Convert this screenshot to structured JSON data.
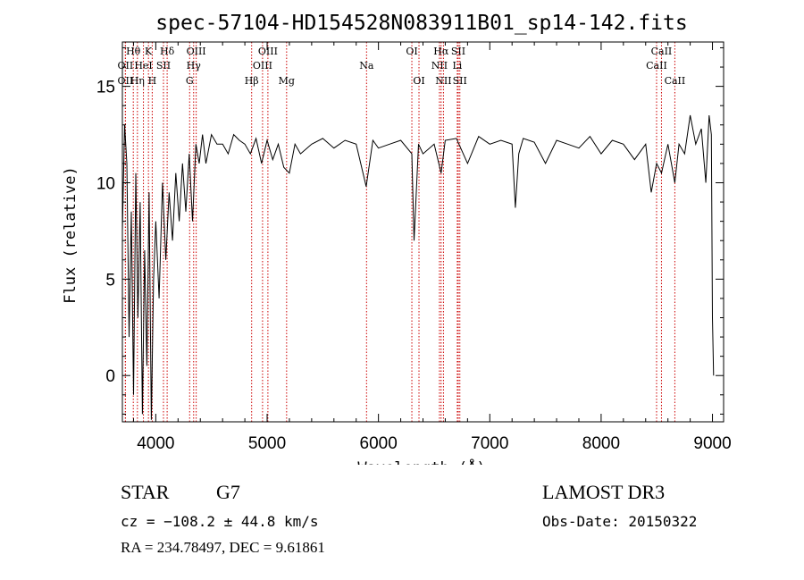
{
  "chart_data": {
    "type": "line",
    "title": "spec-57104-HD154528N083911B01_sp14-142.fits",
    "xlabel": "Wavelength (Å)",
    "ylabel": "Flux (relative)",
    "xlim": [
      3700,
      9100
    ],
    "ylim": [
      -2.4,
      17.3
    ],
    "xticks": [
      4000,
      5000,
      6000,
      7000,
      8000,
      9000
    ],
    "yticks": [
      0,
      5,
      10,
      15
    ],
    "grid": false,
    "series": [
      {
        "x": [
          3700,
          3720,
          3740,
          3760,
          3780,
          3800,
          3820,
          3840,
          3860,
          3880,
          3900,
          3920,
          3940,
          3960,
          3980,
          4000,
          4030,
          4060,
          4090,
          4120,
          4150,
          4180,
          4210,
          4240,
          4270,
          4300,
          4330,
          4360,
          4390,
          4420,
          4450,
          4500,
          4550,
          4600,
          4650,
          4700,
          4750,
          4800,
          4850,
          4900,
          4950,
          5000,
          5050,
          5100,
          5150,
          5200,
          5250,
          5300,
          5400,
          5500,
          5600,
          5700,
          5800,
          5890,
          5950,
          6000,
          6100,
          6200,
          6300,
          6320,
          6360,
          6400,
          6500,
          6563,
          6600,
          6700,
          6800,
          6900,
          7000,
          7100,
          7200,
          7230,
          7260,
          7300,
          7400,
          7500,
          7600,
          7700,
          7800,
          7900,
          8000,
          8100,
          8200,
          8300,
          8400,
          8450,
          8498,
          8542,
          8600,
          8662,
          8700,
          8750,
          8800,
          8850,
          8900,
          8940,
          8970,
          8990,
          9000,
          9010
        ],
        "y": [
          7.5,
          13.0,
          11.0,
          2.0,
          8.5,
          -1.0,
          10.5,
          3.0,
          9.0,
          -2.0,
          6.5,
          0.5,
          9.5,
          -2.3,
          5.0,
          8.0,
          4.0,
          10.0,
          6.0,
          9.5,
          7.0,
          10.5,
          8.0,
          11.0,
          8.5,
          11.5,
          8.0,
          12.0,
          11.0,
          12.5,
          11.0,
          12.5,
          12.0,
          12.0,
          11.5,
          12.5,
          12.2,
          12.0,
          11.5,
          12.3,
          11.0,
          12.2,
          11.2,
          12.0,
          10.8,
          10.5,
          12.0,
          11.5,
          12.0,
          12.3,
          11.8,
          12.2,
          12.0,
          9.8,
          12.2,
          11.8,
          12.0,
          12.2,
          11.5,
          7.0,
          12.0,
          11.5,
          12.0,
          10.5,
          12.2,
          12.3,
          11.0,
          12.4,
          12.0,
          12.2,
          12.0,
          8.7,
          11.5,
          12.3,
          12.1,
          11.0,
          12.2,
          12.0,
          11.8,
          12.4,
          11.5,
          12.2,
          12.0,
          11.2,
          12.0,
          9.5,
          11.0,
          10.5,
          12.0,
          10.0,
          12.0,
          11.5,
          13.5,
          12.0,
          12.8,
          10.0,
          13.5,
          12.5,
          3.0,
          0.0
        ]
      }
    ],
    "line_markers": [
      {
        "label": "Hθ",
        "x": 3798,
        "row": 1
      },
      {
        "label": "OII",
        "x": 3727,
        "row": 2
      },
      {
        "label": "OII",
        "x": 3727,
        "row": 3
      },
      {
        "label": "K",
        "x": 3934,
        "row": 1
      },
      {
        "label": "HeI",
        "x": 3889,
        "row": 2
      },
      {
        "label": "Hη",
        "x": 3835,
        "row": 3
      },
      {
        "label": "Hδ",
        "x": 4102,
        "row": 1
      },
      {
        "label": "SII",
        "x": 4069,
        "row": 2
      },
      {
        "label": "H",
        "x": 3968,
        "row": 3
      },
      {
        "label": "OIII",
        "x": 4363,
        "row": 1
      },
      {
        "label": "Hγ",
        "x": 4340,
        "row": 2
      },
      {
        "label": "G",
        "x": 4304,
        "row": 3
      },
      {
        "label": "OIII",
        "x": 5007,
        "row": 1
      },
      {
        "label": "OIII",
        "x": 4959,
        "row": 2
      },
      {
        "label": "Hβ",
        "x": 4861,
        "row": 3
      },
      {
        "label": "Mg",
        "x": 5175,
        "row": 3
      },
      {
        "label": "Na",
        "x": 5893,
        "row": 2
      },
      {
        "label": "OI",
        "x": 6300,
        "row": 1
      },
      {
        "label": "OI",
        "x": 6364,
        "row": 3
      },
      {
        "label": "Hα",
        "x": 6563,
        "row": 1
      },
      {
        "label": "NII",
        "x": 6548,
        "row": 2
      },
      {
        "label": "NII",
        "x": 6584,
        "row": 3
      },
      {
        "label": "SII",
        "x": 6717,
        "row": 1
      },
      {
        "label": "Li",
        "x": 6708,
        "row": 2
      },
      {
        "label": "SII",
        "x": 6731,
        "row": 3
      },
      {
        "label": "CaII",
        "x": 8542,
        "row": 1
      },
      {
        "label": "CaII",
        "x": 8498,
        "row": 2
      },
      {
        "label": "CaII",
        "x": 8662,
        "row": 3
      }
    ]
  },
  "info": {
    "object_class": "STAR",
    "subclass": "G7",
    "survey": "LAMOST DR3",
    "cz": "cz = −108.2 ± 44.8 km/s",
    "obs_date": "Obs-Date: 20150322",
    "coords": "RA = 234.78497, DEC =   9.61861"
  }
}
